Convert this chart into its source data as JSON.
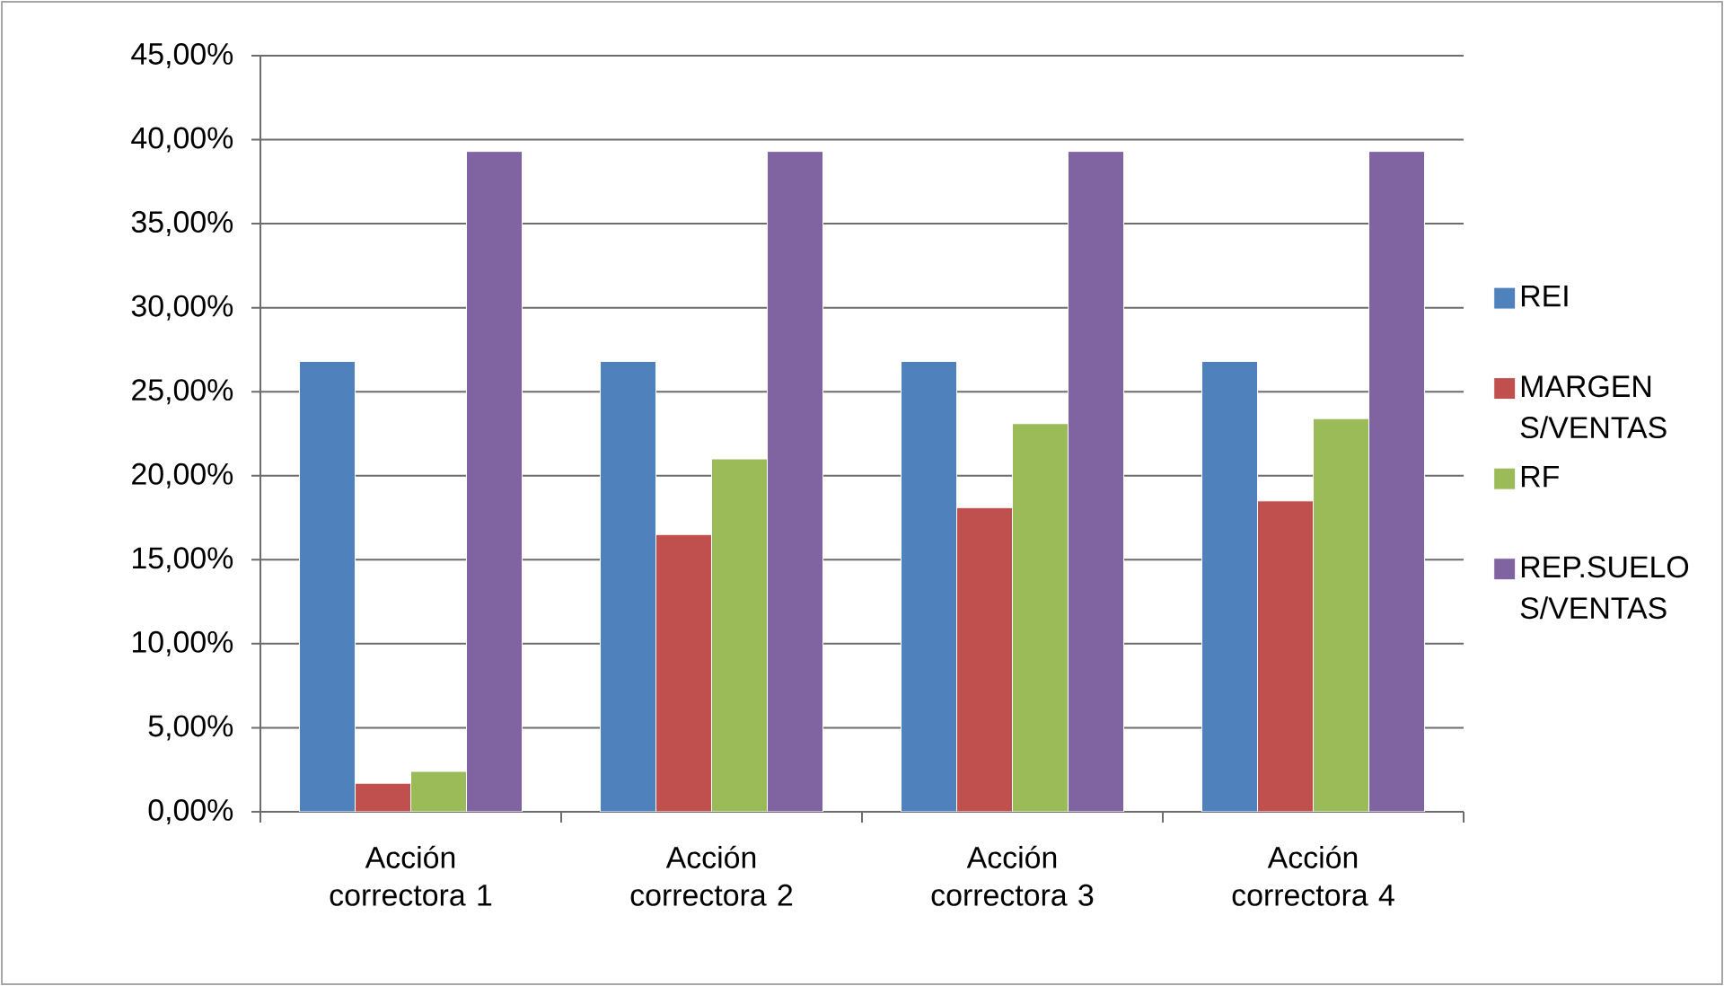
{
  "chart_data": {
    "type": "bar",
    "categories": [
      "Acción correctora 1",
      "Acción correctora 2",
      "Acción correctora 3",
      "Acción correctora 4"
    ],
    "series": [
      {
        "name": "REI",
        "color": "#4f81bd",
        "values": [
          26.8,
          26.8,
          26.8,
          26.8
        ]
      },
      {
        "name": "MARGEN S/VENTAS",
        "color": "#c0504d",
        "values": [
          1.7,
          16.5,
          18.1,
          18.5
        ]
      },
      {
        "name": "RF",
        "color": "#9bbb59",
        "values": [
          2.4,
          21.0,
          23.1,
          23.4
        ]
      },
      {
        "name": "REP.SUELO S/VENTAS",
        "color": "#8064a2",
        "values": [
          39.3,
          39.3,
          39.3,
          39.3
        ]
      }
    ],
    "ylim": [
      0,
      45
    ],
    "yticks": [
      {
        "value": 0,
        "label": "0,00%"
      },
      {
        "value": 5,
        "label": "5,00%"
      },
      {
        "value": 10,
        "label": "10,00%"
      },
      {
        "value": 15,
        "label": "15,00%"
      },
      {
        "value": 20,
        "label": "20,00%"
      },
      {
        "value": 25,
        "label": "25,00%"
      },
      {
        "value": 30,
        "label": "30,00%"
      },
      {
        "value": 35,
        "label": "35,00%"
      },
      {
        "value": 40,
        "label": "40,00%"
      },
      {
        "value": 45,
        "label": "45,00%"
      }
    ],
    "grid": "y",
    "legend": "right"
  }
}
